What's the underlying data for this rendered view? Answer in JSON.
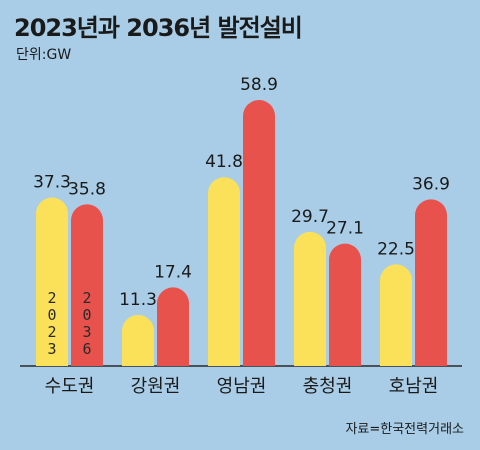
{
  "header": {
    "title": "2023년과 2036년 발전설비",
    "unit": "단위:GW"
  },
  "footer": {
    "source": "자료=한국전력거래소"
  },
  "colors": {
    "background": "#a9cde6",
    "series_2023": "#fbe15a",
    "series_2036": "#e8524c"
  },
  "chart_data": {
    "type": "bar",
    "title": "2023년과 2036년 발전설비",
    "ylabel": "단위:GW",
    "categories": [
      "수도권",
      "강원권",
      "영남권",
      "충청권",
      "호남권"
    ],
    "series": [
      {
        "name": "2023",
        "values": [
          37.3,
          11.3,
          41.8,
          29.7,
          22.5
        ]
      },
      {
        "name": "2036",
        "values": [
          35.8,
          17.4,
          58.9,
          27.1,
          36.9
        ]
      }
    ],
    "ylim": [
      0,
      60
    ],
    "grid": false,
    "legend": "inside-first-bars"
  }
}
